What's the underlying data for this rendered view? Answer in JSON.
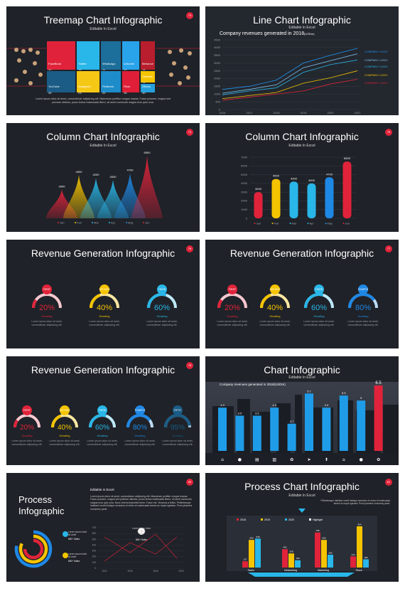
{
  "slides": {
    "s1": {
      "title": "Treemap Chart Infographic",
      "subtitle": "Editable In Excel",
      "badge": "73",
      "cells": [
        {
          "name": "FaceBook",
          "value": "30",
          "color": "#e0233a"
        },
        {
          "name": "Twitter",
          "value": "25",
          "color": "#29b6e8"
        },
        {
          "name": "WhatsApp",
          "value": "24",
          "color": "#1c6e9b"
        },
        {
          "name": "LinkedIn",
          "value": "20",
          "color": "#29a3ea"
        },
        {
          "name": "Behance",
          "value": "18",
          "color": "#b81e2e"
        },
        {
          "name": "YouTube",
          "value": "30",
          "color": "#1b5c86"
        },
        {
          "name": "Instagram",
          "value": "23",
          "color": "#f6c816"
        },
        {
          "name": "Pinterest",
          "value": "22",
          "color": "#1e8cc9"
        },
        {
          "name": "Flickr",
          "value": "15",
          "color": "#df1f37"
        },
        {
          "name": "Dribbble",
          "value": "13",
          "color": "#f5c400"
        },
        {
          "name": "Others",
          "value": "10",
          "color": "#27a0dc"
        }
      ],
      "paragraph": "Lorem ipsum dolor sit amet, consectetuer adipiscing elit. Maecenas porttitor congue massa. Fusce posuere, magna sed pulvinar ultricies, purus lectus malesuada libero, sit amet commodo magna eros quis urna."
    },
    "s2": {
      "title": "Line Chart Infographic",
      "subtitle": "Editable In Excel",
      "chart_title": "Company revenues generated in 2018",
      "chart_title_unit": "(USDm)",
      "series_labels": [
        "COMPANY LOGO",
        "COMPANY LOGO",
        "COMPANY LOGO",
        "COMPANY LOGO",
        "COMPANY LOGO"
      ]
    },
    "s3": {
      "title": "Column Chart Infographic",
      "subtitle": "Editable In Excel",
      "badge": "74"
    },
    "s4": {
      "title": "Column Chart Infographic",
      "subtitle": "Editable In Excel",
      "badge": "75"
    },
    "s5": {
      "title": "Revenue Generation Infographic",
      "badge": "76"
    },
    "s6": {
      "title": "Revenue Generation Infographic",
      "badge": "77"
    },
    "s7": {
      "title": "Revenue Generation Infographic",
      "badge": "78"
    },
    "s8": {
      "title": "Chart Infographic",
      "subtitle": "Editable In Excel",
      "chart_title": "Company revenues generated in 2018(USDm)"
    },
    "s9": {
      "title_line1": "Process",
      "title_line2": "Infographic",
      "subtitle": "Editable In Excel",
      "badge": "80",
      "paragraph": "Lorem ipsum dolor sit amet, consectetuer adipiscing elit. Maecenas porttitor congue massa. Fusce posuere, magna sed pulvinar ultricies, purus lectus malesuada libero, sit amet commodo magna eros quis urna. Nunc viverra imperdiet enim. Fusce est. Vivamus a tellus. Pellentesque habitant morbi tristique senectus et netus et malesuada fames ac turpis egestas. Proin pharetra nonummy pede.",
      "note1": "Lorem ipsum dolor sit amet",
      "note1_sales": "800+ Sales",
      "note2": "Lorem ipsum dolor sit amet",
      "note2_sales": "800+ Sales",
      "note3": "Lorem ipsum dolor sit amet",
      "note3_sales": "800+ Sales"
    },
    "s10": {
      "title": "Process Chart Infographic",
      "subtitle": "Editable In Excel",
      "badge": "81",
      "paragraph": "Pellentesque habitant morbi tristique senectus et netus et malesuada fames ac turpis egestas. Proin pharetra nonummy pede."
    }
  },
  "common": {
    "heading": "Heading",
    "body": "Lorem ipsum dolor sit amet, consectetuer adipiscing elit.",
    "steps": [
      "FIRST",
      "SECOND",
      "THIRD",
      "FOURTH",
      "FIFTH"
    ]
  },
  "chart_data": [
    {
      "type": "line",
      "title": "Company revenues generated in 2018(USDm)",
      "x": [
        2016,
        2017,
        2018,
        2019,
        2020,
        2021
      ],
      "ylim": [
        0,
        4500
      ],
      "yticks": [
        0,
        500,
        1000,
        1500,
        2000,
        2500,
        3000,
        3500,
        4000,
        4500
      ],
      "series": [
        {
          "name": "COMPANY LOGO",
          "color": "#2196f3",
          "values": [
            1300,
            1500,
            1900,
            3000,
            3500,
            3950
          ]
        },
        {
          "name": "COMPANY LOGO",
          "color": "#7ec8f5",
          "values": [
            1050,
            1300,
            1600,
            2700,
            3150,
            3600
          ]
        },
        {
          "name": "COMPANY LOGO",
          "color": "#29b6e8",
          "values": [
            950,
            1200,
            1400,
            2400,
            2900,
            3200
          ]
        },
        {
          "name": "COMPANY LOGO",
          "color": "#f5c400",
          "values": [
            700,
            900,
            1100,
            1700,
            2050,
            2500
          ]
        },
        {
          "name": "COMPANY LOGO",
          "color": "#e0233a",
          "values": [
            600,
            800,
            1000,
            1200,
            1650,
            1950
          ]
        }
      ]
    },
    {
      "type": "area",
      "categories": [
        "Jan",
        "Feb",
        "Mar",
        "Apr",
        "May",
        "Jun"
      ],
      "values": [
        3000,
        4500,
        4200,
        4000,
        4700,
        6500
      ],
      "colors": [
        "#e0233a",
        "#f5c400",
        "#29b6e8",
        "#29b6e8",
        "#1e88e5",
        "#e0233a"
      ]
    },
    {
      "type": "bar",
      "categories": [
        "Jan",
        "Feb",
        "Mar",
        "Apr",
        "May",
        "Jun"
      ],
      "values": [
        3000,
        4500,
        4200,
        4000,
        4700,
        6500
      ],
      "ylim": [
        0,
        7000
      ],
      "yticks": [
        0,
        1000,
        2000,
        3000,
        4000,
        5000,
        6000,
        7000
      ],
      "colors": [
        "#e0233a",
        "#f5c400",
        "#29b6e8",
        "#29b6e8",
        "#1e88e5",
        "#e0233a"
      ]
    },
    {
      "type": "bar",
      "title": "Company revenues generated in 2018(USDm)",
      "values": [
        4.3,
        3.5,
        3.5,
        4.3,
        2.7,
        5.7,
        4.3,
        5.5,
        5,
        6.5
      ],
      "colors": [
        "#1f9ce8",
        "#1f9ce8",
        "#1f9ce8",
        "#1f9ce8",
        "#1f9ce8",
        "#1f9ce8",
        "#1f9ce8",
        "#1f9ce8",
        "#1f9ce8",
        "#e0233a"
      ]
    },
    {
      "type": "bar",
      "categories": [
        "Sales",
        "Networking",
        "Marketing",
        "Stock"
      ],
      "series": [
        {
          "name": "2018",
          "color": "#e0233a",
          "values": [
            137,
            402,
            768,
            244
          ]
        },
        {
          "name": "2019",
          "color": "#f5c400",
          "values": [
            605,
            308,
            605,
            904
          ]
        },
        {
          "name": "2020",
          "color": "#29b6e8",
          "values": [
            635,
            160,
            280,
            180
          ]
        }
      ],
      "legend": [
        "2018",
        "2019",
        "2020",
        "Highlight"
      ]
    }
  ]
}
